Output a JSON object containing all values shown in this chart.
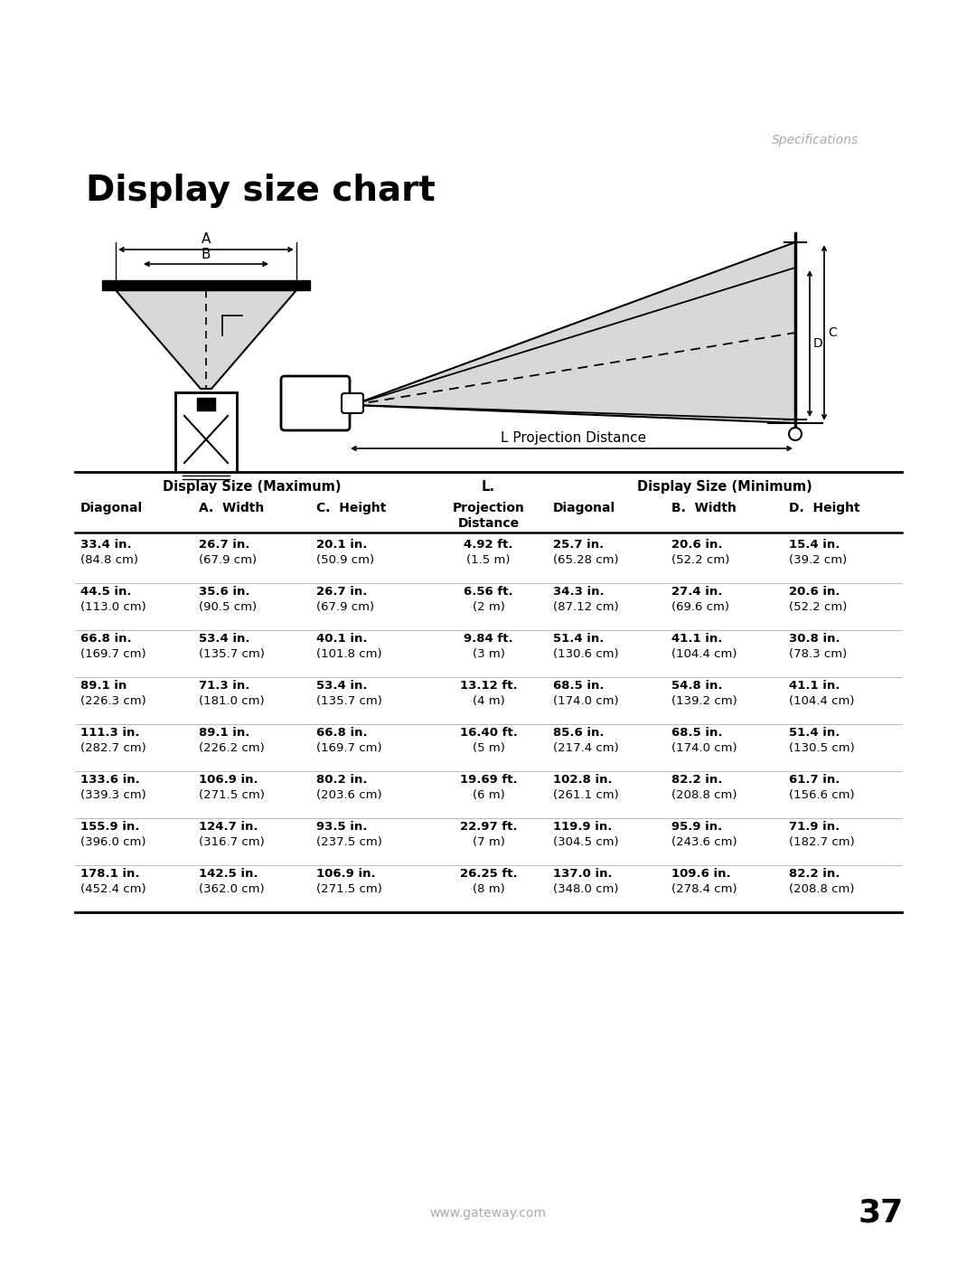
{
  "title": "Display size chart",
  "specs_label": "Specifications",
  "page_number": "37",
  "website": "www.gateway.com",
  "table_header1_left": "Display Size (Maximum)",
  "table_header1_mid": "L.",
  "table_header1_right": "Display Size (Minimum)",
  "col_sub_headers": [
    "Diagonal",
    "A.  Width",
    "C.  Height",
    "Projection\nDistance",
    "Diagonal",
    "B.  Width",
    "D.  Height"
  ],
  "rows": [
    [
      "33.4 in.",
      "26.7 in.",
      "20.1 in.",
      "4.92 ft.",
      "25.7 in.",
      "20.6 in.",
      "15.4 in."
    ],
    [
      "(84.8 cm)",
      "(67.9 cm)",
      "(50.9 cm)",
      "(1.5 m)",
      "(65.28 cm)",
      "(52.2 cm)",
      "(39.2 cm)"
    ],
    [
      "44.5 in.",
      "35.6 in.",
      "26.7 in.",
      "6.56 ft.",
      "34.3 in.",
      "27.4 in.",
      "20.6 in."
    ],
    [
      "(113.0 cm)",
      "(90.5 cm)",
      "(67.9 cm)",
      "(2 m)",
      "(87.12 cm)",
      "(69.6 cm)",
      "(52.2 cm)"
    ],
    [
      "66.8 in.",
      "53.4 in.",
      "40.1 in.",
      "9.84 ft.",
      "51.4 in.",
      "41.1 in.",
      "30.8 in."
    ],
    [
      "(169.7 cm)",
      "(135.7 cm)",
      "(101.8 cm)",
      "(3 m)",
      "(130.6 cm)",
      "(104.4 cm)",
      "(78.3 cm)"
    ],
    [
      "89.1 in",
      "71.3 in.",
      "53.4 in.",
      "13.12 ft.",
      "68.5 in.",
      "54.8 in.",
      "41.1 in."
    ],
    [
      "(226.3 cm)",
      "(181.0 cm)",
      "(135.7 cm)",
      "(4 m)",
      "(174.0 cm)",
      "(139.2 cm)",
      "(104.4 cm)"
    ],
    [
      "111.3 in.",
      "89.1 in.",
      "66.8 in.",
      "16.40 ft.",
      "85.6 in.",
      "68.5 in.",
      "51.4 in."
    ],
    [
      "(282.7 cm)",
      "(226.2 cm)",
      "(169.7 cm)",
      "(5 m)",
      "(217.4 cm)",
      "(174.0 cm)",
      "(130.5 cm)"
    ],
    [
      "133.6 in.",
      "106.9 in.",
      "80.2 in.",
      "19.69 ft.",
      "102.8 in.",
      "82.2 in.",
      "61.7 in."
    ],
    [
      "(339.3 cm)",
      "(271.5 cm)",
      "(203.6 cm)",
      "(6 m)",
      "(261.1 cm)",
      "(208.8 cm)",
      "(156.6 cm)"
    ],
    [
      "155.9 in.",
      "124.7 in.",
      "93.5 in.",
      "22.97 ft.",
      "119.9 in.",
      "95.9 in.",
      "71.9 in."
    ],
    [
      "(396.0 cm)",
      "(316.7 cm)",
      "(237.5 cm)",
      "(7 m)",
      "(304.5 cm)",
      "(243.6 cm)",
      "(182.7 cm)"
    ],
    [
      "178.1 in.",
      "142.5 in.",
      "106.9 in.",
      "26.25 ft.",
      "137.0 in.",
      "109.6 in.",
      "82.2 in."
    ],
    [
      "(452.4 cm)",
      "(362.0 cm)",
      "(271.5 cm)",
      "(8 m)",
      "(348.0 cm)",
      "(278.4 cm)",
      "(208.8 cm)"
    ]
  ],
  "bg_color": "#ffffff",
  "text_color": "#000000",
  "specs_color": "#aaaaaa"
}
